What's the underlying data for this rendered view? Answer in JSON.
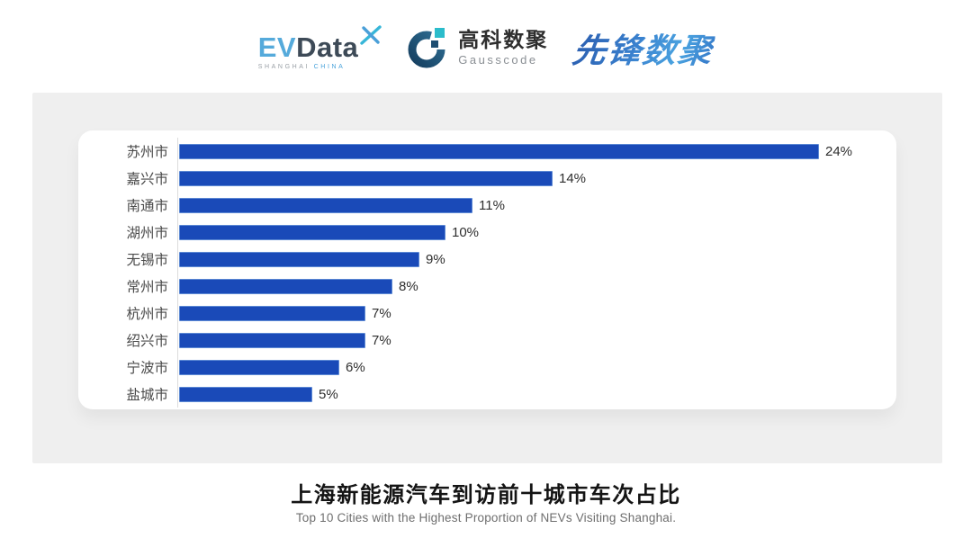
{
  "header": {
    "evdata_logo": {
      "ev": "EV",
      "data": "Data",
      "sub_left": "SHANGHAI",
      "sub_right": "CHINA"
    },
    "gausscode_logo": {
      "name_cn": "高科数聚",
      "name_en": "Gausscode"
    },
    "pioneer_logo": {
      "text": "先锋数聚"
    }
  },
  "chart_data": {
    "type": "bar",
    "orientation": "horizontal",
    "categories": [
      "苏州市",
      "嘉兴市",
      "南通市",
      "湖州市",
      "无锡市",
      "常州市",
      "杭州市",
      "绍兴市",
      "宁波市",
      "盐城市"
    ],
    "values": [
      24,
      14,
      11,
      10,
      9,
      8,
      7,
      7,
      6,
      5
    ],
    "value_labels": [
      "24%",
      "14%",
      "11%",
      "10%",
      "9%",
      "8%",
      "7%",
      "7%",
      "6%",
      "5%"
    ],
    "unit": "%",
    "xlim": [
      0,
      24
    ],
    "grid": false,
    "legend": false,
    "bar_color": "#1a4ab8",
    "title": "上海新能源汽车到访前十城市车次占比",
    "subtitle": "Top 10 Cities with the Highest Proportion of  NEVs Visiting Shanghai."
  },
  "footer": {
    "title": "上海新能源汽车到访前十城市车次占比",
    "subtitle": "Top 10 Cities with the Highest Proportion of  NEVs Visiting Shanghai."
  },
  "colors": {
    "bar": "#1a4ab8",
    "panel_bg": "#efefef",
    "card_bg": "#ffffff",
    "axis_line": "#dddddd",
    "evdata_ev": "#55aadb",
    "evdata_data": "#3d4a57",
    "pioneer_blue_dark": "#2a5cae",
    "pioneer_blue_light": "#4aa3e0",
    "gausscode_navy": "#1d4d71",
    "gausscode_teal": "#2bbccb"
  }
}
